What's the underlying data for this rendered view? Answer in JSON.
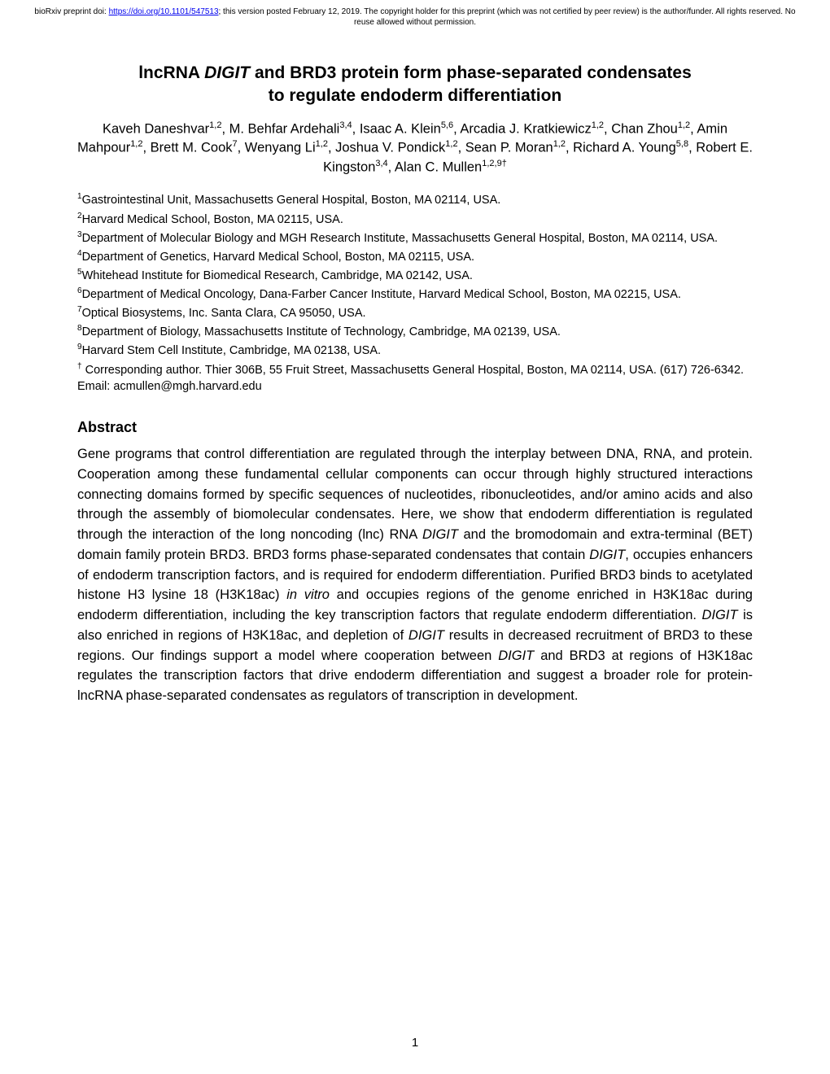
{
  "preprint": {
    "prefix": "bioRxiv preprint doi: ",
    "doi_url": "https://doi.org/10.1101/547513",
    "suffix": "; this version posted February 12, 2019. The copyright holder for this preprint (which was not certified by peer review) is the author/funder. All rights reserved. No reuse allowed without permission."
  },
  "title": {
    "line1_pre": "lncRNA ",
    "line1_italic": "DIGIT",
    "line1_post": " and BRD3 protein form phase-separated condensates",
    "line2": "to regulate endoderm differentiation"
  },
  "authors_html": "Kaveh Daneshvar<sup>1,2</sup>, M. Behfar Ardehali<sup>3,4</sup>, Isaac A. Klein<sup>5,6</sup>, Arcadia J. Kratkiewicz<sup>1,2</sup>, Chan Zhou<sup>1,2</sup>, Amin Mahpour<sup>1,2</sup>, Brett M. Cook<sup>7</sup>, Wenyang Li<sup>1,2</sup>, Joshua V. Pondick<sup>1,2</sup>, Sean P. Moran<sup>1,2</sup>, Richard A. Young<sup>5,8</sup>, Robert E. Kingston<sup>3,4</sup>, Alan C. Mullen<sup>1,2,9†</sup>",
  "affiliations": [
    "<sup>1</sup>Gastrointestinal Unit, Massachusetts General Hospital, Boston, MA 02114, USA.",
    "<sup>2</sup>Harvard Medical School, Boston, MA 02115, USA.",
    "<sup>3</sup>Department of Molecular Biology and MGH Research Institute, Massachusetts General Hospital, Boston, MA 02114, USA.",
    "<sup>4</sup>Department of Genetics, Harvard Medical School, Boston, MA 02115, USA.",
    "<sup>5</sup>Whitehead Institute for Biomedical Research, Cambridge, MA 02142, USA.",
    "<sup>6</sup>Department of Medical Oncology, Dana-Farber Cancer Institute, Harvard Medical School, Boston, MA 02215, USA.",
    "<sup>7</sup>Optical Biosystems, Inc. Santa Clara, CA 95050, USA.",
    "<sup>8</sup>Department of Biology, Massachusetts Institute of Technology, Cambridge, MA 02139, USA.",
    "<sup>9</sup>Harvard Stem Cell Institute, Cambridge, MA 02138, USA.",
    "<sup>†</sup> Corresponding author. Thier 306B, 55 Fruit Street, Massachusetts General Hospital, Boston, MA 02114, USA. (617) 726-6342. Email: acmullen@mgh.harvard.edu"
  ],
  "abstract_heading": "Abstract",
  "abstract_html": "Gene programs that control differentiation are regulated through the interplay between DNA, RNA, and protein. Cooperation among these fundamental cellular components can occur through highly structured interactions connecting domains formed by specific sequences of nucleotides, ribonucleotides, and/or amino acids and also through the assembly of biomolecular condensates. Here, we show that endoderm differentiation is regulated through the interaction of the long noncoding (lnc) RNA <span class=\"italic\">DIGIT</span> and the bromodomain and extra-terminal (BET) domain family protein BRD3. BRD3 forms phase-separated condensates that contain <span class=\"italic\">DIGIT</span>, occupies enhancers of endoderm transcription factors, and is required for endoderm differentiation. Purified BRD3 binds to acetylated histone H3 lysine 18 (H3K18ac) <span class=\"italic\">in vitro</span> and occupies regions of the genome enriched in H3K18ac during endoderm differentiation, including the key transcription factors that regulate endoderm differentiation. <span class=\"italic\">DIGIT</span> is also enriched in regions of H3K18ac, and depletion of <span class=\"italic\">DIGIT</span> results in decreased recruitment of BRD3 to these regions. Our findings support a model where cooperation between <span class=\"italic\">DIGIT</span> and BRD3 at regions of H3K18ac regulates the transcription factors that drive endoderm differentiation and suggest a broader role for protein-lncRNA phase-separated condensates as regulators of transcription in development.",
  "page_number": "1"
}
